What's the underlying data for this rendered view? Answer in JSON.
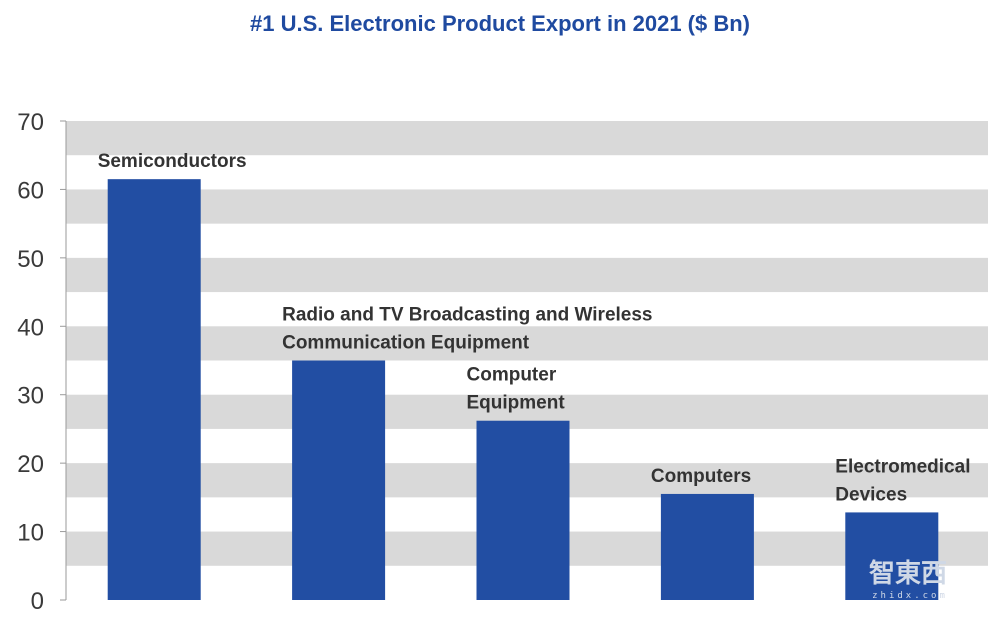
{
  "chart_data": {
    "type": "bar",
    "title": "#1 U.S. Electronic Product Export in 2021 ($ Bn)",
    "xlabel": "",
    "ylabel": "",
    "ylim": [
      0,
      70
    ],
    "yticks": [
      0,
      10,
      20,
      30,
      40,
      50,
      60,
      70
    ],
    "grid": "alternating horizontal bands",
    "categories": [
      [
        "Semiconductors"
      ],
      [
        "Radio and TV Broadcasting and Wireless",
        "Communication Equipment"
      ],
      [
        "Computer",
        "Equipment"
      ],
      [
        "Computers"
      ],
      [
        "Electromedical",
        "Devices"
      ]
    ],
    "values": [
      61.5,
      35,
      26.2,
      15.5,
      12.8
    ],
    "colors": {
      "bar": "#224ea3",
      "band": "#d9d9d9",
      "title": "#1f4aa0",
      "label": "#333333"
    }
  },
  "watermark": {
    "main": "智東西",
    "sub": "zhidx.com"
  }
}
